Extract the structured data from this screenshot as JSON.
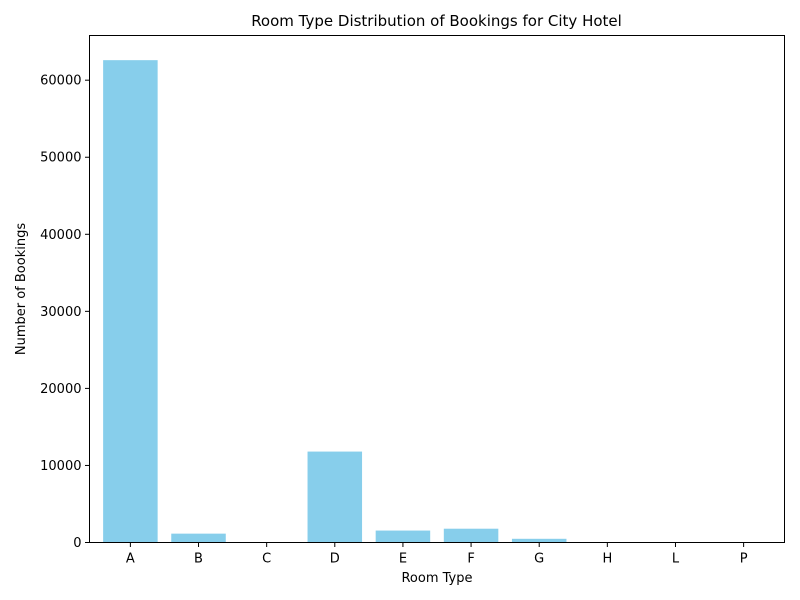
{
  "chart_data": {
    "type": "bar",
    "title": "Room Type Distribution of Bookings for City Hotel",
    "xlabel": "Room Type",
    "ylabel": "Number of Bookings",
    "categories": [
      "A",
      "B",
      "C",
      "D",
      "E",
      "F",
      "G",
      "H",
      "L",
      "P"
    ],
    "values": [
      62600,
      1150,
      14,
      11800,
      1550,
      1790,
      480,
      0,
      0,
      4
    ],
    "ylim": [
      0,
      65800
    ],
    "yticks": [
      0,
      10000,
      20000,
      30000,
      40000,
      50000,
      60000
    ],
    "bar_color": "#87ceeb",
    "grid": false,
    "legend": "none"
  }
}
